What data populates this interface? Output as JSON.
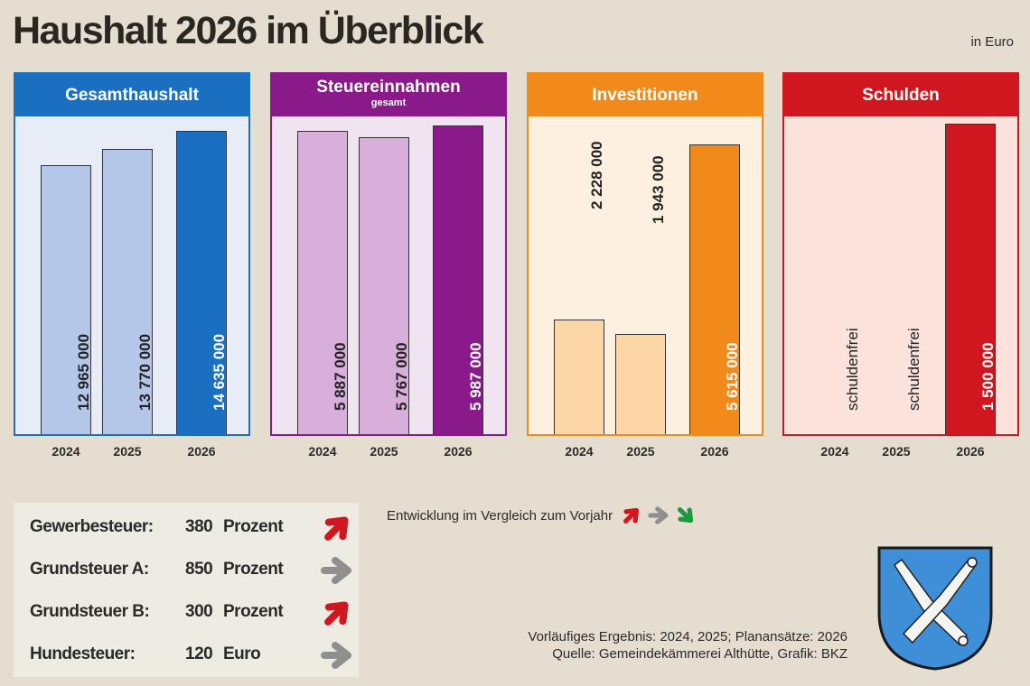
{
  "title": "Haushalt 2026 im Überblick",
  "unit": "in Euro",
  "chart_data": [
    {
      "type": "bar",
      "title": "Gesamthaushalt",
      "subtitle": "",
      "categories": [
        "2024",
        "2025",
        "2026"
      ],
      "values": [
        12965000,
        13770000,
        14635000
      ],
      "labels": [
        "12 965 000",
        "13 770 000",
        "14 635 000"
      ],
      "color": "#1a6fc0",
      "light": "#b5c7e9",
      "bg": "#e8ecf7"
    },
    {
      "type": "bar",
      "title": "Steuereinnahmen",
      "subtitle": "gesamt",
      "categories": [
        "2024",
        "2025",
        "2026"
      ],
      "values": [
        5887000,
        5767000,
        5987000
      ],
      "labels": [
        "5 887 000",
        "5 767 000",
        "5 987 000"
      ],
      "color": "#8a1a8a",
      "light": "#d8aedb",
      "bg": "#f1e4f1"
    },
    {
      "type": "bar",
      "title": "Investitionen",
      "subtitle": "",
      "categories": [
        "2024",
        "2025",
        "2026"
      ],
      "values": [
        2228000,
        1943000,
        5615000
      ],
      "labels": [
        "2 228 000",
        "1 943 000",
        "5 615 000"
      ],
      "color": "#f18a1b",
      "light": "#fbd6a7",
      "bg": "#fdf0e1"
    },
    {
      "type": "bar",
      "title": "Schulden",
      "subtitle": "",
      "categories": [
        "2024",
        "2025",
        "2026"
      ],
      "values": [
        0,
        0,
        1500000
      ],
      "labels": [
        "schuldenfrei",
        "schuldenfrei",
        "1 500 000"
      ],
      "color": "#d0171f",
      "light": "#f5b8b0",
      "bg": "#fbe2db"
    }
  ],
  "rates": [
    {
      "name": "Gewerbesteuer:",
      "value": "380",
      "unit": "Prozent",
      "trend": "up"
    },
    {
      "name": "Grundsteuer A:",
      "value": "850",
      "unit": "Prozent",
      "trend": "same"
    },
    {
      "name": "Grundsteuer B:",
      "value": "300",
      "unit": "Prozent",
      "trend": "up"
    },
    {
      "name": "Hundesteuer:",
      "value": "120",
      "unit": "Euro",
      "trend": "same"
    }
  ],
  "legend": {
    "text": "Entwicklung im Vergleich zum Vorjahr",
    "colors": {
      "up": "#d0171f",
      "same": "#8f8f8f",
      "down": "#1a9a3a"
    }
  },
  "footer": {
    "line1": "Vorläufiges Ergebnis: 2024, 2025; Planansätze: 2026",
    "line2": "Quelle: Gemeindekämmerei Althütte, Grafik: BKZ"
  }
}
